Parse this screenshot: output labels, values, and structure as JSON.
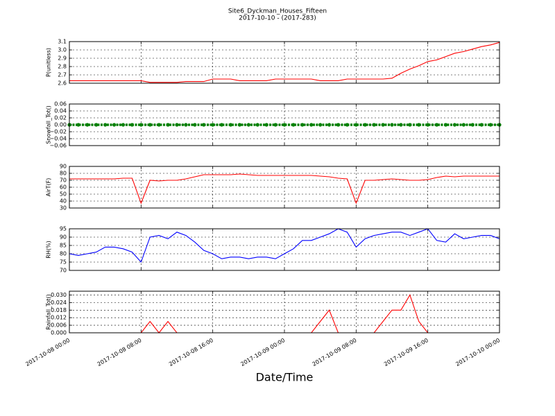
{
  "figure": {
    "title": "Site6_Dyckman_Houses_Fifteen",
    "subtitle": "2017-10-10 - (2017-283)",
    "xlabel": "Date/Time",
    "x": [
      "2017-10-08 00:00",
      "2017-10-08 01:00",
      "2017-10-08 02:00",
      "2017-10-08 03:00",
      "2017-10-08 04:00",
      "2017-10-08 05:00",
      "2017-10-08 06:00",
      "2017-10-08 07:00",
      "2017-10-08 08:00",
      "2017-10-08 09:00",
      "2017-10-08 10:00",
      "2017-10-08 11:00",
      "2017-10-08 12:00",
      "2017-10-08 13:00",
      "2017-10-08 14:00",
      "2017-10-08 15:00",
      "2017-10-08 16:00",
      "2017-10-08 17:00",
      "2017-10-08 18:00",
      "2017-10-08 19:00",
      "2017-10-08 20:00",
      "2017-10-08 21:00",
      "2017-10-08 22:00",
      "2017-10-08 23:00",
      "2017-10-09 00:00",
      "2017-10-09 01:00",
      "2017-10-09 02:00",
      "2017-10-09 03:00",
      "2017-10-09 04:00",
      "2017-10-09 05:00",
      "2017-10-09 06:00",
      "2017-10-09 07:00",
      "2017-10-09 08:00",
      "2017-10-09 09:00",
      "2017-10-09 10:00",
      "2017-10-09 11:00",
      "2017-10-09 12:00",
      "2017-10-09 13:00",
      "2017-10-09 14:00",
      "2017-10-09 15:00",
      "2017-10-09 16:00",
      "2017-10-09 17:00",
      "2017-10-09 18:00",
      "2017-10-09 19:00",
      "2017-10-09 20:00",
      "2017-10-09 21:00",
      "2017-10-09 22:00",
      "2017-10-09 23:00",
      "2017-10-10 00:00"
    ],
    "xlim": [
      "2017-10-08 00:00",
      "2017-10-10 00:00"
    ],
    "xticks": [
      "2017-10-08 00:00",
      "2017-10-08 08:00",
      "2017-10-08 16:00",
      "2017-10-09 00:00",
      "2017-10-09 08:00",
      "2017-10-09 16:00",
      "2017-10-10 00:00"
    ]
  },
  "chart_data": [
    {
      "type": "line",
      "ylabel": "P(unitless)",
      "ylim": [
        2.6,
        3.1
      ],
      "grid": true,
      "yticks": [
        2.6,
        2.7,
        2.8,
        2.9,
        {
          "value": 3,
          "label": "3.0"
        },
        3.1
      ],
      "series": [
        {
          "color": "#ff0000",
          "values": [
            2.63,
            2.63,
            2.63,
            2.63,
            2.63,
            2.63,
            2.63,
            2.63,
            2.63,
            2.61,
            2.61,
            2.61,
            2.61,
            2.62,
            2.62,
            2.62,
            2.65,
            2.65,
            2.65,
            2.63,
            2.63,
            2.63,
            2.63,
            2.65,
            2.65,
            2.65,
            2.65,
            2.65,
            2.63,
            2.63,
            2.63,
            2.65,
            2.65,
            2.65,
            2.65,
            2.65,
            2.66,
            2.72,
            2.77,
            2.81,
            2.86,
            2.88,
            2.92,
            2.96,
            2.98,
            3.01,
            3.04,
            3.06,
            3.09
          ]
        }
      ]
    },
    {
      "type": "scatter",
      "ylabel": "Snowfall_Tot()",
      "ylim": [
        -0.06,
        0.06
      ],
      "grid": true,
      "yticks": [
        {
          "value": -0.06,
          "label": "−0.06"
        },
        {
          "value": -0.04,
          "label": "−0.04"
        },
        {
          "value": -0.02,
          "label": "−0.02"
        },
        {
          "value": 0,
          "label": "0.00"
        },
        {
          "value": 0.02,
          "label": "0.02"
        },
        {
          "value": 0.04,
          "label": "0.04"
        },
        {
          "value": 0.06,
          "label": "0.06"
        }
      ],
      "series": [
        {
          "color": "#008000",
          "values": [
            0,
            0,
            0,
            0,
            0,
            0,
            0,
            0,
            0,
            0,
            0,
            0,
            0,
            0,
            0,
            0,
            0,
            0,
            0,
            0,
            0,
            0,
            0,
            0,
            0,
            0,
            0,
            0,
            0,
            0,
            0,
            0,
            0,
            0,
            0,
            0,
            0,
            0,
            0,
            0,
            0,
            0,
            0,
            0,
            0,
            0,
            0,
            0,
            0
          ]
        }
      ]
    },
    {
      "type": "line",
      "ylabel": "AirT(F)",
      "ylim": [
        30,
        90
      ],
      "grid": true,
      "yticks": [
        30,
        40,
        50,
        60,
        70,
        80,
        90
      ],
      "series": [
        {
          "color": "#ff0000",
          "values": [
            72,
            72,
            72,
            72,
            72,
            72,
            73,
            73,
            37,
            70,
            69,
            70,
            70,
            72,
            75,
            78,
            78,
            78,
            78,
            79,
            78,
            77,
            77,
            77,
            77,
            77,
            77,
            77,
            76,
            75,
            73,
            72,
            37,
            70,
            70,
            71,
            72,
            71,
            70,
            70,
            71,
            74,
            76,
            75,
            76,
            76,
            76,
            76,
            76
          ]
        }
      ]
    },
    {
      "type": "line",
      "ylabel": "RH(%)",
      "ylim": [
        70,
        95
      ],
      "grid": true,
      "yticks": [
        70,
        75,
        80,
        85,
        90,
        95
      ],
      "series": [
        {
          "color": "#0000ff",
          "values": [
            80,
            79,
            80,
            81,
            84,
            84,
            83,
            81,
            75,
            90,
            91,
            89,
            93,
            91,
            87,
            82,
            80,
            77,
            78,
            78,
            77,
            78,
            78,
            77,
            80,
            83,
            88,
            88,
            90,
            92,
            95,
            93,
            84,
            89,
            91,
            92,
            93,
            93,
            91,
            93,
            95,
            88,
            87,
            92,
            89,
            90,
            91,
            91,
            89
          ]
        }
      ]
    },
    {
      "type": "line",
      "ylabel": "Rainfall_Tot()",
      "ylim": [
        0,
        0.033
      ],
      "grid": true,
      "yticks": [
        {
          "value": 0,
          "label": "0.000"
        },
        {
          "value": 0.006,
          "label": "0.006"
        },
        {
          "value": 0.012,
          "label": "0.012"
        },
        {
          "value": 0.018,
          "label": "0.018"
        },
        {
          "value": 0.024,
          "label": "0.024"
        },
        {
          "value": 0.03,
          "label": "0.030"
        }
      ],
      "series": [
        {
          "color": "#ff0000",
          "values": [
            0,
            0,
            0,
            0,
            0,
            0,
            0,
            0,
            0,
            0.009,
            0,
            0.009,
            0,
            0,
            0,
            0,
            0,
            0,
            0,
            0,
            0,
            0,
            0,
            0,
            0,
            0,
            0,
            0,
            0.009,
            0.018,
            0,
            0,
            0,
            0,
            0,
            0.009,
            0.018,
            0.018,
            0.03,
            0.009,
            0,
            0,
            0,
            0,
            0,
            0,
            0,
            0,
            0
          ]
        }
      ]
    }
  ]
}
